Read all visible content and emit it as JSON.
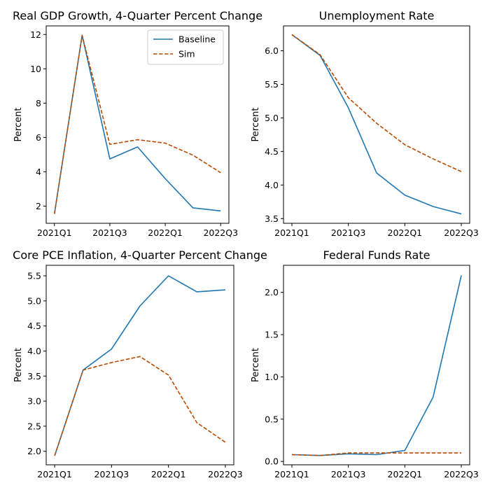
{
  "colors": {
    "baseline": "#1f77b4",
    "sim": "#b84a00"
  },
  "chart_data": [
    {
      "type": "line",
      "title": "Real GDP Growth, 4-Quarter Percent Change",
      "xlabel": "",
      "ylabel": "Percent",
      "x": [
        "2021Q1",
        "2021Q2",
        "2021Q3",
        "2021Q4",
        "2022Q1",
        "2022Q2",
        "2022Q3"
      ],
      "xticklabels": [
        "2021Q1",
        "2021Q3",
        "2022Q1",
        "2022Q3"
      ],
      "ylim": [
        1.0,
        12.5
      ],
      "yticks": [
        2,
        4,
        6,
        8,
        10,
        12
      ],
      "yticklabels": [
        "2",
        "4",
        "6",
        "8",
        "10",
        "12"
      ],
      "legend": "top-right",
      "grid": false,
      "series": [
        {
          "name": "Baseline",
          "style": "solid",
          "values": [
            1.55,
            11.95,
            4.75,
            5.45,
            3.6,
            1.9,
            1.72
          ]
        },
        {
          "name": "Sim",
          "style": "dashed",
          "values": [
            1.55,
            11.95,
            5.6,
            5.87,
            5.67,
            4.97,
            3.95
          ]
        }
      ]
    },
    {
      "type": "line",
      "title": "Unemployment Rate",
      "xlabel": "",
      "ylabel": "Percent",
      "x": [
        "2021Q1",
        "2021Q2",
        "2021Q3",
        "2021Q4",
        "2022Q1",
        "2022Q2",
        "2022Q3"
      ],
      "xticklabels": [
        "2021Q1",
        "2021Q3",
        "2022Q1",
        "2022Q3"
      ],
      "ylim": [
        3.43,
        6.37
      ],
      "yticks": [
        3.5,
        4.0,
        4.5,
        5.0,
        5.5,
        6.0
      ],
      "yticklabels": [
        "3.5",
        "4.0",
        "4.5",
        "5.0",
        "5.5",
        "6.0"
      ],
      "grid": false,
      "series": [
        {
          "name": "Baseline",
          "style": "solid",
          "values": [
            6.24,
            5.93,
            5.15,
            4.18,
            3.85,
            3.68,
            3.57
          ]
        },
        {
          "name": "Sim",
          "style": "dashed",
          "values": [
            6.24,
            5.94,
            5.3,
            4.92,
            4.6,
            4.39,
            4.2
          ]
        }
      ]
    },
    {
      "type": "line",
      "title": "Core PCE Inflation, 4-Quarter Percent Change",
      "xlabel": "",
      "ylabel": "Percent",
      "x": [
        "2021Q1",
        "2021Q2",
        "2021Q3",
        "2021Q4",
        "2022Q1",
        "2022Q2",
        "2022Q3"
      ],
      "xticklabels": [
        "2021Q1",
        "2021Q3",
        "2022Q1",
        "2022Q3"
      ],
      "ylim": [
        1.73,
        5.71
      ],
      "yticks": [
        2.0,
        2.5,
        3.0,
        3.5,
        4.0,
        4.5,
        5.0,
        5.5
      ],
      "yticklabels": [
        "2.0",
        "2.5",
        "3.0",
        "3.5",
        "4.0",
        "4.5",
        "5.0",
        "5.5"
      ],
      "grid": false,
      "series": [
        {
          "name": "Baseline",
          "style": "solid",
          "values": [
            1.91,
            3.62,
            4.04,
            4.9,
            5.5,
            5.18,
            5.22
          ]
        },
        {
          "name": "Sim",
          "style": "dashed",
          "values": [
            1.91,
            3.62,
            3.77,
            3.89,
            3.52,
            2.57,
            2.18
          ]
        }
      ]
    },
    {
      "type": "line",
      "title": "Federal Funds Rate",
      "xlabel": "",
      "ylabel": "Percent",
      "x": [
        "2021Q1",
        "2021Q2",
        "2021Q3",
        "2021Q4",
        "2022Q1",
        "2022Q2",
        "2022Q3"
      ],
      "xticklabels": [
        "2021Q1",
        "2021Q3",
        "2022Q1",
        "2022Q3"
      ],
      "ylim": [
        -0.04,
        2.32
      ],
      "yticks": [
        0.0,
        0.5,
        1.0,
        1.5,
        2.0
      ],
      "yticklabels": [
        "0.0",
        "0.5",
        "1.0",
        "1.5",
        "2.0"
      ],
      "grid": false,
      "series": [
        {
          "name": "Baseline",
          "style": "solid",
          "values": [
            0.08,
            0.07,
            0.09,
            0.08,
            0.13,
            0.76,
            2.2
          ]
        },
        {
          "name": "Sim",
          "style": "dashed",
          "values": [
            0.08,
            0.07,
            0.1,
            0.1,
            0.1,
            0.1,
            0.1
          ]
        }
      ]
    }
  ]
}
